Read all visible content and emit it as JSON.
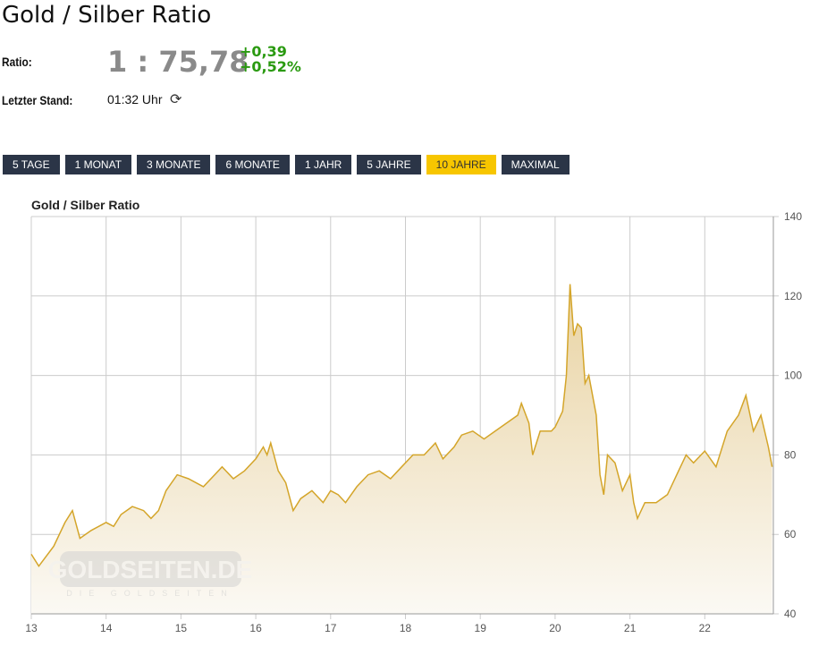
{
  "header": {
    "title": "Gold / Silber Ratio",
    "ratio_label": "Ratio:",
    "ratio_value": "1 : 75,78",
    "change_abs": "+0,39",
    "change_pct": "+0,52%",
    "stand_label": "Letzter Stand:",
    "stand_time": "01:32 Uhr",
    "refresh_icon": "refresh-icon"
  },
  "ranges": [
    {
      "label": "5 TAGE"
    },
    {
      "label": "1 MONAT"
    },
    {
      "label": "3 MONATE"
    },
    {
      "label": "6 MONATE"
    },
    {
      "label": "1 JAHR"
    },
    {
      "label": "5 JAHRE"
    },
    {
      "label": "10 JAHRE",
      "active": true
    },
    {
      "label": "MAXIMAL"
    }
  ],
  "colors": {
    "line": "#d4a52a",
    "button": "#2b3547",
    "active": "#f7c600",
    "positive": "#2a9a10"
  },
  "watermark": {
    "text": "GOLDSEITEN.DE",
    "sub": "DIE GOLDSEITEN"
  },
  "chart_data": {
    "type": "area",
    "title": "Gold / Silber Ratio",
    "xlabel": "",
    "ylabel": "",
    "xticks": [
      "13",
      "14",
      "15",
      "16",
      "17",
      "18",
      "19",
      "20",
      "21",
      "22"
    ],
    "yticks": [
      40,
      60,
      80,
      100,
      120,
      140
    ],
    "ylim": [
      40,
      140
    ],
    "xlim": [
      13,
      22.95
    ],
    "grid": true,
    "y_axis_side": "right",
    "x": [
      13.0,
      13.1,
      13.3,
      13.45,
      13.55,
      13.65,
      13.8,
      14.0,
      14.1,
      14.2,
      14.35,
      14.5,
      14.6,
      14.7,
      14.8,
      14.95,
      15.1,
      15.3,
      15.45,
      15.55,
      15.7,
      15.85,
      16.0,
      16.1,
      16.15,
      16.2,
      16.3,
      16.4,
      16.5,
      16.6,
      16.75,
      16.9,
      17.0,
      17.1,
      17.2,
      17.35,
      17.5,
      17.65,
      17.8,
      17.95,
      18.1,
      18.25,
      18.4,
      18.5,
      18.65,
      18.75,
      18.9,
      19.05,
      19.2,
      19.35,
      19.5,
      19.55,
      19.65,
      19.7,
      19.8,
      19.95,
      20.0,
      20.1,
      20.15,
      20.2,
      20.25,
      20.3,
      20.35,
      20.4,
      20.45,
      20.55,
      20.6,
      20.65,
      20.7,
      20.8,
      20.9,
      21.0,
      21.05,
      21.1,
      21.2,
      21.35,
      21.5,
      21.65,
      21.75,
      21.85,
      22.0,
      22.15,
      22.3,
      22.45,
      22.55,
      22.65,
      22.75,
      22.85,
      22.9
    ],
    "y": [
      55,
      52,
      57,
      63,
      66,
      59,
      61,
      63,
      62,
      65,
      67,
      66,
      64,
      66,
      71,
      75,
      74,
      72,
      75,
      77,
      74,
      76,
      79,
      82,
      80,
      83,
      76,
      73,
      66,
      69,
      71,
      68,
      71,
      70,
      68,
      72,
      75,
      76,
      74,
      77,
      80,
      80,
      83,
      79,
      82,
      85,
      86,
      84,
      86,
      88,
      90,
      93,
      88,
      80,
      86,
      86,
      87,
      91,
      100,
      123,
      110,
      113,
      112,
      98,
      100,
      90,
      75,
      70,
      80,
      78,
      71,
      75,
      68,
      64,
      68,
      68,
      70,
      76,
      80,
      78,
      81,
      77,
      86,
      90,
      95,
      86,
      90,
      82,
      77
    ]
  }
}
